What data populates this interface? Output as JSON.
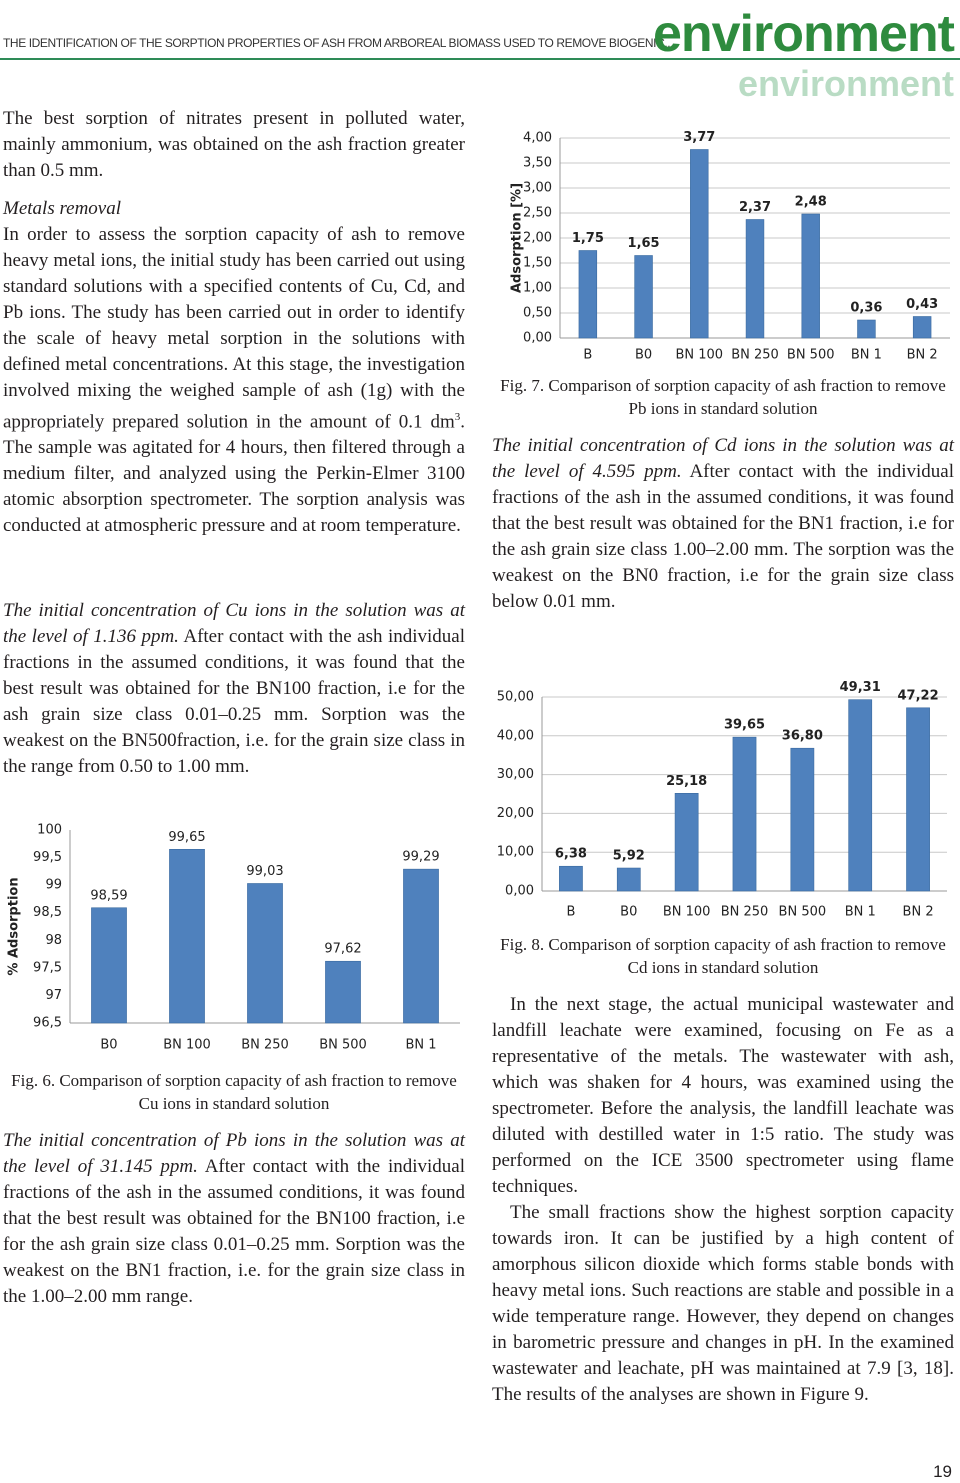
{
  "header": {
    "running_title": "THE IDENTIFICATION OF THE SORPTION PROPERTIES OF ASH FROM ARBOREAL BIOMASS USED TO REMOVE BIOGENIC...",
    "logo": "environment"
  },
  "left": {
    "p1": "The best sorption of nitrates present in polluted water, mainly ammonium, was obtained on the ash fraction greater than 0.5 mm.",
    "heading": "Metals removal",
    "p2": "In order to assess the sorption capacity of ash to remove heavy metal ions, the initial study has been carried out using standard solutions with a specified contents of Cu, Cd, and Pb ions. The study has been carried out in order to identify the scale of heavy metal sorption in the solutions with defined metal concentrations. At this stage, the investigation involved mixing the weighed sample of ash (1g) with the appropriately prepared solution in the amount of 0.1 dm",
    "p2_sup": "3",
    "p2_end": ". The sample was agitated for 4 hours, then filtered through a medium filter, and analyzed using the Perkin-Elmer 3100 atomic absorption spectrometer. The sorption analysis was conducted at atmospheric pressure and at room temperature.",
    "p3_italic": "The initial concentration of Cu ions in the solution was at the level of 1.136 ppm.",
    "p3": " After contact with the ash individual fractions in the assumed conditions, it was found that the best result was obtained for the BN100 fraction, i.e for the ash grain size class 0.01–0.25 mm. Sorption was the weakest on the BN500fraction, i.e. for the grain size class in the range from 0.50 to 1.00 mm.",
    "fig6_caption": "Fig. 6. Comparison of sorption capacity of ash fraction to remove Cu ions in standard solution",
    "p4_italic": "The initial concentration of Pb ions in the solution was at the level of 31.145 ppm.",
    "p4": " After contact with the individual fractions of the ash in the assumed conditions, it was found that the best result was obtained for the BN100 fraction, i.e for the ash grain size class 0.01–0.25 mm. Sorption was the weakest on the BN1 fraction, i.e. for the grain size class in the 1.00–2.00 mm range."
  },
  "right": {
    "fig7_caption": "Fig. 7. Comparison of sorption capacity of ash fraction to remove Pb ions in standard solution",
    "p1_italic": "The initial concentration of Cd ions in the solution was at the level of 4.595 ppm.",
    "p1": " After contact with the individual fractions of the ash in the assumed conditions, it was found that the best result was obtained for the BN1 fraction, i.e for the ash grain size class 1.00–2.00 mm. The sorption was the weakest on the BN0 fraction, i.e for the grain size class below 0.01 mm.",
    "fig8_caption": "Fig. 8. Comparison of sorption capacity of ash fraction to remove Cd ions in standard solution",
    "p2": "In the next stage, the actual municipal wastewater and landfill leachate were examined, focusing on Fe as a representative of the metals. The wastewater with ash, which was shaken for 4 hours, was examined using the spectrometer. Before the analysis, the landfill leachate was diluted with destilled water in 1:5 ratio. The study was performed on the ICE 3500 spectrometer using flame techniques.",
    "p3": "The small fractions show the highest sorption capacity towards iron. It can be justified by a high content of amorphous silicon dioxide which forms stable bonds with heavy metal ions. Such reactions are stable and possible in a wide temperature range. However, they depend on changes in barometric pressure and changes in pH. In the examined wastewater and leachate, pH was maintained at 7.9 [3, 18]. The results of the analyses are shown in Figure 9."
  },
  "page_number": "19",
  "chart_data": [
    {
      "type": "bar",
      "y_label": "% Adsorption",
      "categories": [
        "B0",
        "BN 100",
        "BN 250",
        "BN 500",
        "BN 1"
      ],
      "values": [
        98.59,
        99.65,
        99.03,
        97.62,
        99.29
      ],
      "value_labels": [
        "98,59",
        "99,65",
        "99,03",
        "97,62",
        "99,29"
      ],
      "color": "#4f81bd",
      "grid": false,
      "ylim": [
        96.5,
        100
      ],
      "yticks": [
        {
          "value": 96.5,
          "label": "96,5"
        },
        97,
        {
          "value": 97.5,
          "label": "97,5"
        },
        98,
        {
          "value": 98.5,
          "label": "98,5"
        },
        99,
        {
          "value": 99.5,
          "label": "99,5"
        },
        100
      ]
    },
    {
      "type": "bar",
      "y_label": "Adsorption [%]",
      "categories": [
        "B",
        "B0",
        "BN 100",
        "BN 250",
        "BN 500",
        "BN 1",
        "BN 2"
      ],
      "values": [
        1.75,
        1.65,
        3.77,
        2.37,
        2.48,
        0.36,
        0.43
      ],
      "value_labels": [
        "1,75",
        "1,65",
        "3,77",
        "2,37",
        "2,48",
        "0,36",
        "0,43"
      ],
      "color": "#4f81bd",
      "grid": true,
      "ylim": [
        0,
        4
      ],
      "yticks": [
        {
          "value": 0,
          "label": "0,00"
        },
        {
          "value": 0.5,
          "label": "0,50"
        },
        {
          "value": 1,
          "label": "1,00"
        },
        {
          "value": 1.5,
          "label": "1,50"
        },
        {
          "value": 2,
          "label": "2,00"
        },
        {
          "value": 2.5,
          "label": "2,50"
        },
        {
          "value": 3,
          "label": "3,00"
        },
        {
          "value": 3.5,
          "label": "3,50"
        },
        {
          "value": 4,
          "label": "4,00"
        }
      ]
    },
    {
      "type": "bar",
      "categories": [
        "B",
        "B0",
        "BN 100",
        "BN 250",
        "BN 500",
        "BN 1",
        "BN 2"
      ],
      "values": [
        6.38,
        5.92,
        25.18,
        39.65,
        36.8,
        49.31,
        47.22
      ],
      "value_labels": [
        "6,38",
        "5,92",
        "25,18",
        "39,65",
        "36,80",
        "49,31",
        "47,22"
      ],
      "color": "#4f81bd",
      "grid": true,
      "ylim": [
        0,
        50
      ],
      "yticks": [
        {
          "value": 0,
          "label": "0,00"
        },
        {
          "value": 10,
          "label": "10,00"
        },
        {
          "value": 20,
          "label": "20,00"
        },
        {
          "value": 30,
          "label": "30,00"
        },
        {
          "value": 40,
          "label": "40,00"
        },
        {
          "value": 50,
          "label": "50,00"
        }
      ]
    }
  ]
}
